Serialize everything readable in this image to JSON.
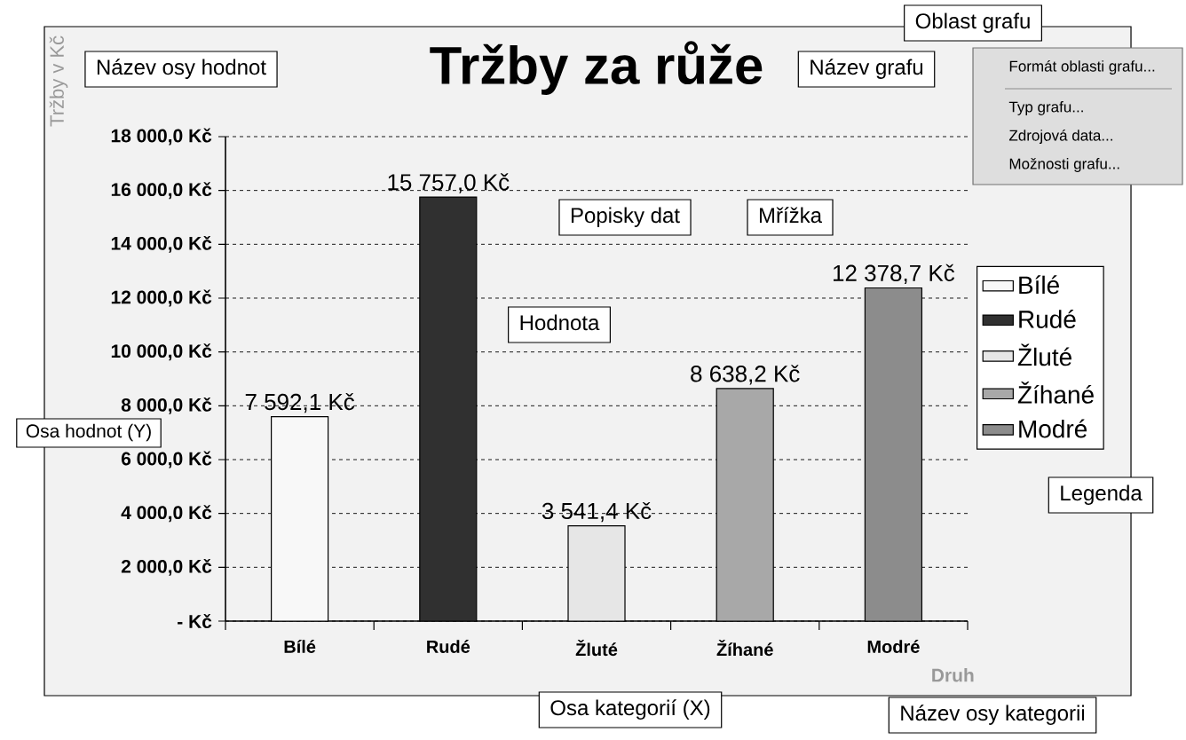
{
  "chart_data": {
    "type": "bar",
    "title": "Tržby za růže",
    "xlabel": "Druh",
    "ylabel": "Tržby v Kč",
    "categories": [
      "Bílé",
      "Rudé",
      "Žluté",
      "Žíhané",
      "Modré"
    ],
    "series": [
      {
        "name": "Bílé",
        "color": "#f8f8f8",
        "values": [
          7592.1,
          null,
          null,
          null,
          null
        ],
        "value_labels": [
          "7 592,1 Kč",
          null,
          null,
          null,
          null
        ]
      },
      {
        "name": "Rudé",
        "color": "#303030",
        "values": [
          null,
          15757.0,
          null,
          null,
          null
        ],
        "value_labels": [
          null,
          "15 757,0 Kč",
          null,
          null,
          null
        ]
      },
      {
        "name": "Žluté",
        "color": "#e6e6e6",
        "values": [
          null,
          null,
          3541.4,
          null,
          null
        ],
        "value_labels": [
          null,
          null,
          "3 541,4 Kč",
          null,
          null
        ]
      },
      {
        "name": "Žíhané",
        "color": "#a8a8a8",
        "values": [
          null,
          null,
          null,
          8638.2,
          null
        ],
        "value_labels": [
          null,
          null,
          null,
          "8 638,2 Kč",
          null
        ]
      },
      {
        "name": "Modré",
        "color": "#8c8c8c",
        "values": [
          null,
          null,
          null,
          null,
          12378.7
        ],
        "value_labels": [
          null,
          null,
          null,
          null,
          "12 378,7 Kč"
        ]
      }
    ],
    "ylim": [
      0,
      18000
    ],
    "yticks": [
      {
        "value": 0,
        "label": "- Kč"
      },
      {
        "value": 2000,
        "label": "2 000,0 Kč"
      },
      {
        "value": 4000,
        "label": "4 000,0 Kč"
      },
      {
        "value": 6000,
        "label": "6 000,0 Kč"
      },
      {
        "value": 8000,
        "label": "8 000,0 Kč"
      },
      {
        "value": 10000,
        "label": "10 000,0 Kč"
      },
      {
        "value": 12000,
        "label": "12 000,0 Kč"
      },
      {
        "value": 14000,
        "label": "14 000,0 Kč"
      },
      {
        "value": 16000,
        "label": "16 000,0 Kč"
      },
      {
        "value": 18000,
        "label": "18 000,0 Kč"
      }
    ],
    "grid": "y",
    "legend": "right",
    "annotations": [
      "Název osy hodnot",
      "Název grafu",
      "Oblast grafu",
      "Formát oblasti grafu...",
      "Typ grafu...",
      "Zdrojová data...",
      "Možnosti grafu...",
      "Popisky dat",
      "Mřížka",
      "Hodnota",
      "Osa hodnot (Y)",
      "Legenda",
      "Osa kategorií (X)",
      "Název osy kategorii"
    ]
  }
}
